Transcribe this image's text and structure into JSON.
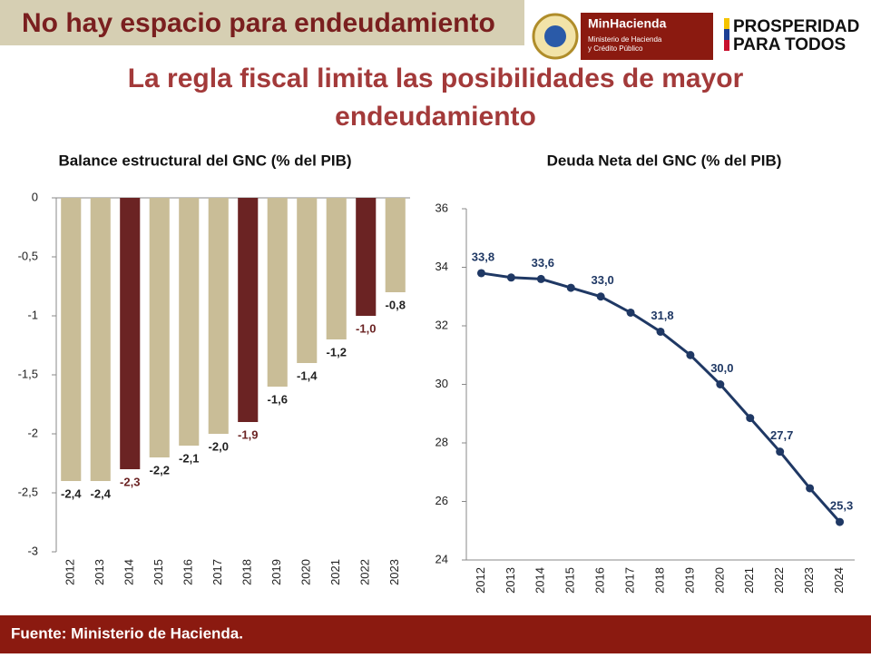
{
  "header": {
    "banner": "No hay espacio para endeudamiento",
    "title_line1": "La regla fiscal limita las posibilidades de mayor",
    "title_line2": "endeudamiento"
  },
  "logos": {
    "ministry": "MinHacienda",
    "ministry_line1": "Ministerio de Hacienda",
    "ministry_line2": "y Crédito Público",
    "slogan_line1": "PROSPERIDAD",
    "slogan_line2": "PARA TODOS"
  },
  "footer": "Fuente: Ministerio de Hacienda.",
  "chart_data": [
    {
      "type": "bar",
      "title": "Balance estructural del GNC (% del PIB)",
      "categories": [
        "2012",
        "2013",
        "2014",
        "2015",
        "2016",
        "2017",
        "2018",
        "2019",
        "2020",
        "2021",
        "2022",
        "2023"
      ],
      "values": [
        -2.4,
        -2.4,
        -2.3,
        -2.2,
        -2.1,
        -2.0,
        -1.9,
        -1.6,
        -1.4,
        -1.2,
        -1.0,
        -0.8
      ],
      "value_labels": [
        "-2,4",
        "-2,4",
        "-2,3",
        "-2,2",
        "-2,1",
        "-2,0",
        "-1,9",
        "-1,6",
        "-1,4",
        "-1,2",
        "-1,0",
        "-0,8"
      ],
      "colors": [
        "#c9bd97",
        "#c9bd97",
        "#6b2323",
        "#c9bd97",
        "#c9bd97",
        "#c9bd97",
        "#6b2323",
        "#c9bd97",
        "#c9bd97",
        "#c9bd97",
        "#6b2323",
        "#c9bd97"
      ],
      "ylim": [
        -3,
        0
      ],
      "yticks": [
        0,
        {
          "value": -0.5,
          "label": "-0,5"
        },
        -1,
        {
          "value": -1.5,
          "label": "-1,5"
        },
        -2,
        {
          "value": -2.5,
          "label": "-2,5"
        },
        -3
      ],
      "grid": false
    },
    {
      "type": "line",
      "title": "Deuda Neta del GNC (% del PIB)",
      "categories": [
        "2012",
        "2013",
        "2014",
        "2015",
        "2016",
        "2017",
        "2018",
        "2019",
        "2020",
        "2021",
        "2022",
        "2023",
        "2024"
      ],
      "values": [
        33.8,
        33.65,
        33.6,
        33.3,
        33.0,
        32.45,
        31.8,
        31.0,
        30.0,
        28.85,
        27.7,
        26.45,
        25.3
      ],
      "value_labels": [
        "33,8",
        null,
        "33,6",
        null,
        "33,0",
        null,
        "31,8",
        null,
        "30,0",
        null,
        "27,7",
        null,
        "25,3"
      ],
      "color": "#1f3864",
      "ylim": [
        24,
        36
      ],
      "yticks": [
        24,
        26,
        28,
        30,
        32,
        34,
        36
      ],
      "grid": false
    }
  ]
}
